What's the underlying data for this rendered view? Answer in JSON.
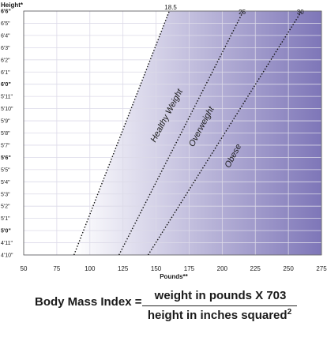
{
  "chart_data": {
    "type": "line",
    "ylabel": "Height*",
    "xlabel": "Pounds**",
    "x_ticks": [
      50,
      75,
      100,
      125,
      150,
      175,
      200,
      225,
      250,
      275
    ],
    "xlim": [
      50,
      275
    ],
    "y_ticks_inches": [
      58,
      59,
      60,
      61,
      62,
      63,
      64,
      65,
      66,
      67,
      68,
      69,
      70,
      71,
      72,
      73,
      74,
      75,
      76,
      77,
      78
    ],
    "y_tick_labels": [
      "4'10\"",
      "4'11\"",
      "5'0\"",
      "5'1\"",
      "5'2\"",
      "5'3\"",
      "5'4\"",
      "5'5\"",
      "5'6\"",
      "5'7\"",
      "5'8\"",
      "5'9\"",
      "5'10\"",
      "5'11\"",
      "6'0\"",
      "6'1\"",
      "6'2\"",
      "6'3\"",
      "6'4\"",
      "6'5\"",
      "6'6\""
    ],
    "bold_y_labels": [
      "5'0\"",
      "5'6\"",
      "6'0\"",
      "6'6\""
    ],
    "ylim_inches": [
      58,
      78
    ],
    "series": [
      {
        "name": "18.5",
        "bmi": 18.5,
        "points": [
          [
            88,
            58
          ],
          [
            160,
            78
          ]
        ]
      },
      {
        "name": "25",
        "bmi": 25,
        "points": [
          [
            122,
            58
          ],
          [
            216,
            78
          ]
        ]
      },
      {
        "name": "30",
        "bmi": 30,
        "points": [
          [
            144,
            58
          ],
          [
            260,
            78
          ]
        ]
      }
    ],
    "regions": [
      "Healthy Weight",
      "Overweight",
      "Obese"
    ],
    "colors": {
      "shade_light": "#f2f1fa",
      "shade_dark": "#7e76b8",
      "grid": "#dcdae8",
      "line": "#111111"
    },
    "grid": true
  },
  "formula": {
    "label": "Body Mass Index =",
    "numerator": "weight in pounds X 703",
    "denominator": "height in inches squared",
    "exponent": "2"
  }
}
